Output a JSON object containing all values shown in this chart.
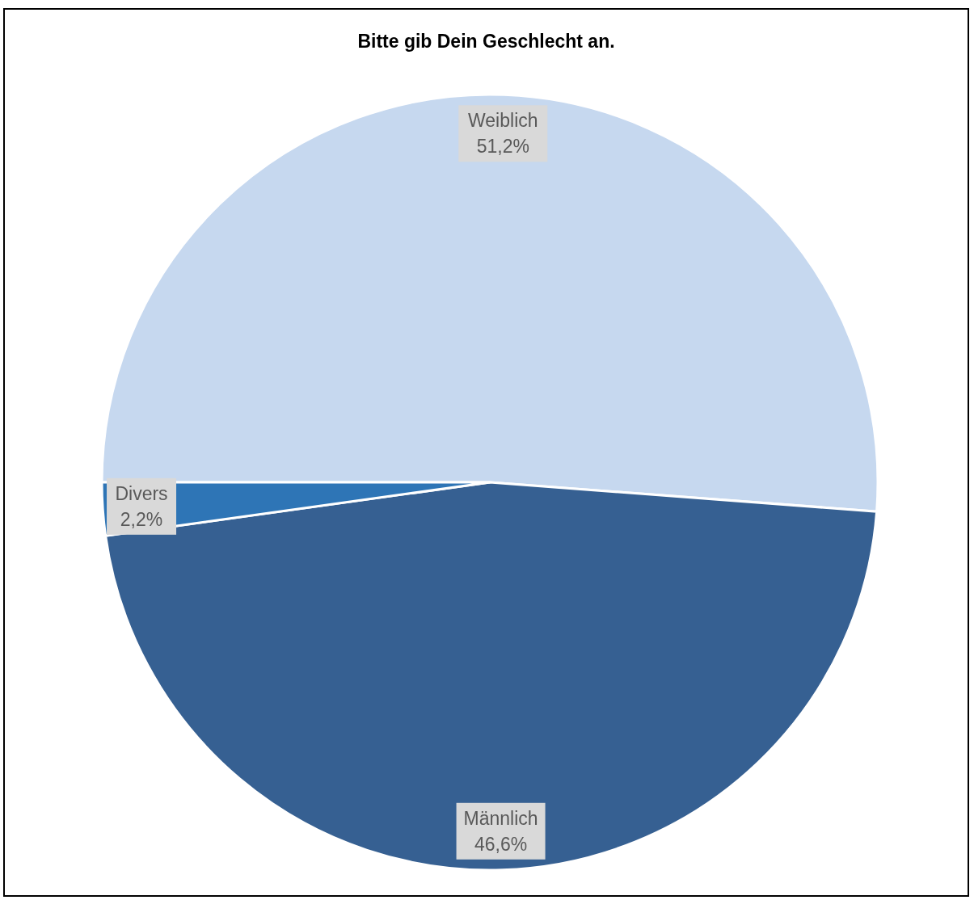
{
  "chart_data": {
    "type": "pie",
    "title": "Bitte gib Dein Geschlecht an.",
    "categories": [
      "Weiblich",
      "Männlich",
      "Divers"
    ],
    "values": [
      51.2,
      46.6,
      2.2
    ],
    "value_labels": [
      "51,2%",
      "46,6%",
      "2,2%"
    ],
    "colors": [
      "#c6d8ef",
      "#366092",
      "#2e75b6"
    ],
    "legend": false
  }
}
